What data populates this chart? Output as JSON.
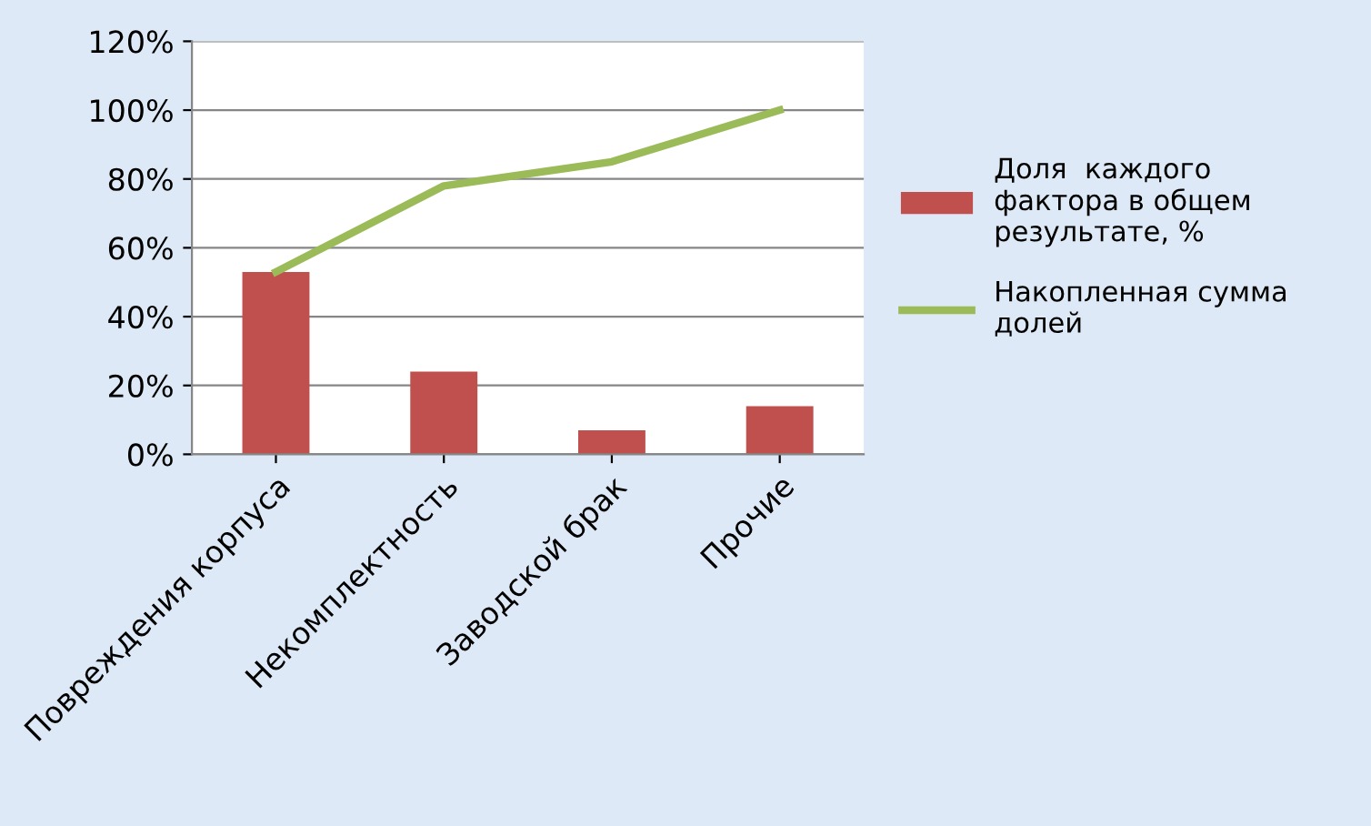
{
  "chart_data": {
    "type": "bar",
    "categories": [
      "Повреждения корпуса",
      "Некомплектность",
      "Заводской брак",
      "Прочие"
    ],
    "series": [
      {
        "name": "Доля  каждого фактора в общем результате, %",
        "color": "#c0504d",
        "values": [
          53,
          24,
          7,
          14
        ]
      },
      {
        "name": "Накопленная сумма долей",
        "type": "line",
        "color": "#9bbb59",
        "values": [
          53,
          78,
          85,
          100
        ]
      }
    ],
    "ylim": [
      0,
      120
    ],
    "yticks": [
      {
        "value": 0,
        "label": "0%"
      },
      {
        "value": 20,
        "label": "20%"
      },
      {
        "value": 40,
        "label": "40%"
      },
      {
        "value": 60,
        "label": "60%"
      },
      {
        "value": 80,
        "label": "80%"
      },
      {
        "value": 100,
        "label": "100%"
      },
      {
        "value": 120,
        "label": "120%"
      }
    ],
    "grid": "y",
    "legend": "right",
    "marker": "none",
    "line_style": "solid"
  }
}
